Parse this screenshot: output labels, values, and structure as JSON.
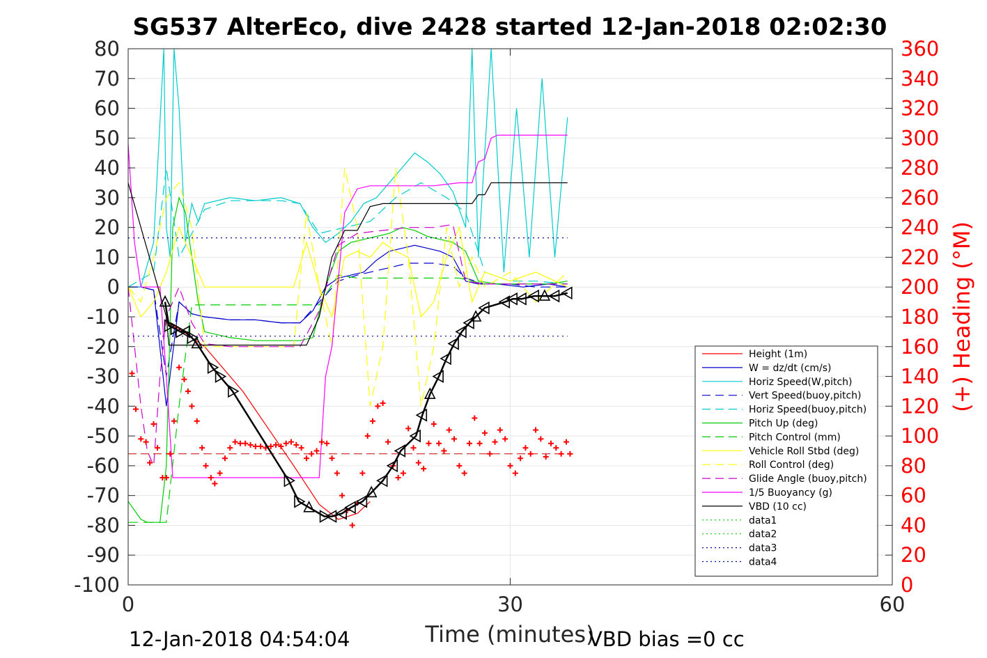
{
  "chart_data": {
    "type": "line",
    "title": "SG537 AlterEco, dive 2428 started 12-Jan-2018 02:02:30",
    "xlabel": "Time (minutes)",
    "ylabel_left": "",
    "ylabel_right": "(+) Heading (°M)",
    "xlim": [
      0,
      60
    ],
    "ylim_left": [
      -100,
      80
    ],
    "ylim_right": [
      0,
      360
    ],
    "x_ticks": [
      "0",
      "30",
      "60"
    ],
    "y_ticks_left": [
      "80",
      "70",
      "60",
      "50",
      "40",
      "30",
      "20",
      "10",
      "0",
      "-10",
      "-20",
      "-30",
      "-40",
      "-50",
      "-60",
      "-70",
      "-80",
      "-90",
      "-100"
    ],
    "y_ticks_right": [
      "360",
      "340",
      "320",
      "300",
      "280",
      "260",
      "240",
      "220",
      "200",
      "180",
      "160",
      "140",
      "120",
      "100",
      "80",
      "60",
      "40",
      "20",
      "0"
    ],
    "grid": true,
    "legend_position": "bottom-right",
    "footer_left": "12-Jan-2018 04:54:04",
    "footer_right": "VBD bias =0 cc",
    "series": [
      {
        "name": "Height (1m)",
        "color": "#ff0000",
        "style": "solid",
        "x": [
          3.0,
          4.0,
          6.0,
          9.0,
          13.0,
          15.0,
          16.5,
          18.0,
          19.0
        ],
        "y": [
          -12,
          -14,
          -20,
          -35,
          -60,
          -73,
          -78,
          -76,
          -72
        ]
      },
      {
        "name": "W = dz/dt (cm/s)",
        "color": "#0000cc",
        "style": "solid",
        "x": [
          0,
          1.0,
          2.0,
          3.0,
          4.0,
          5.0,
          6.0,
          8.0,
          10.0,
          12.0,
          13.5,
          14.5,
          15.5,
          16.5,
          17.5,
          18.5,
          19.5,
          20.5,
          21.5,
          22.5,
          23.5,
          24.5,
          25.5,
          26.5,
          27.5,
          29.0,
          31.0,
          33.0,
          34.5
        ],
        "y": [
          0,
          0,
          -1,
          -40,
          -5,
          -9,
          -10,
          -11,
          -11,
          -12,
          -12,
          -8,
          0,
          3,
          4,
          5,
          9,
          12,
          13,
          14,
          13,
          12,
          10,
          2,
          1,
          1,
          0,
          1,
          0
        ]
      },
      {
        "name": "Horiz Speed(W,pitch)",
        "color": "#00cccc",
        "style": "solid",
        "x": [
          0,
          1.0,
          2.0,
          2.8,
          3.0,
          3.3,
          3.6,
          4.0,
          4.5,
          5.0,
          5.5,
          6.0,
          8.0,
          10.0,
          12.0,
          13.5,
          14.5,
          15.5,
          16.5,
          17.5,
          18.5,
          19.5,
          20.5,
          21.5,
          22.5,
          23.5,
          24.5,
          25.5,
          26.5,
          27.0,
          27.5,
          28.5,
          29.5,
          30.5,
          31.5,
          32.5,
          33.5,
          34.5
        ],
        "y": [
          0,
          0,
          15,
          80,
          20,
          10,
          80,
          60,
          15,
          28,
          22,
          28,
          30,
          29,
          30,
          28,
          20,
          15,
          18,
          22,
          28,
          30,
          35,
          40,
          45,
          42,
          38,
          32,
          20,
          80,
          10,
          80,
          5,
          60,
          10,
          70,
          10,
          57
        ]
      },
      {
        "name": "Vert Speed(buoy,pitch)",
        "color": "#0000cc",
        "style": "dashed",
        "x": [
          0,
          1.0,
          2.0,
          3.0,
          4.0,
          5.0,
          6.0,
          8.0,
          10.0,
          12.0,
          13.5,
          15.0,
          16.5,
          18.0,
          20.0,
          22.0,
          24.0,
          25.5,
          26.5,
          28.0,
          30.0,
          32.0,
          34.5
        ],
        "y": [
          0,
          0,
          -1,
          -30,
          -5,
          -9,
          -10,
          -11,
          -11,
          -12,
          -12,
          -5,
          2,
          4,
          6,
          8,
          8,
          7,
          3,
          1,
          1,
          0,
          0
        ]
      },
      {
        "name": "Horiz Speed(buoy,pitch)",
        "color": "#00cccc",
        "style": "dashed",
        "x": [
          0,
          2.0,
          3.0,
          4.0,
          6.0,
          8.0,
          10.0,
          12.0,
          13.5,
          15.0,
          17.0,
          19.0,
          21.0,
          23.0,
          25.0,
          26.5,
          28.0,
          30.0,
          32.0,
          34.5
        ],
        "y": [
          0,
          5,
          40,
          10,
          26,
          29,
          29,
          29,
          28,
          18,
          20,
          22,
          30,
          35,
          30,
          25,
          5,
          2,
          2,
          1
        ]
      },
      {
        "name": "Pitch Up (deg)",
        "color": "#00cc00",
        "style": "solid",
        "x": [
          0,
          1.0,
          1.5,
          2.0,
          2.5,
          3.0,
          3.5,
          4.0,
          4.5,
          5.0,
          5.5,
          6.0,
          8.0,
          10.0,
          12.0,
          13.5,
          14.5,
          15.5,
          16.5,
          17.5,
          18.5,
          19.5,
          20.5,
          21.5,
          22.5,
          23.5,
          24.5,
          25.5,
          26.5,
          27.5,
          29.0,
          31.0,
          33.0,
          34.5
        ],
        "y": [
          -72,
          -78,
          -79,
          -79,
          -79,
          -60,
          20,
          30,
          25,
          10,
          -5,
          -15,
          -17,
          -18,
          -18,
          -18,
          -17,
          0,
          12,
          15,
          16,
          17,
          18,
          20,
          19,
          17,
          16,
          15,
          12,
          2,
          1,
          1,
          1,
          2
        ]
      },
      {
        "name": "Pitch Control (mm)",
        "color": "#00cc00",
        "style": "dashed",
        "x": [
          0,
          1.0,
          2.0,
          3.0,
          4.0,
          5.0,
          6.0,
          8.0,
          10.0,
          12.0,
          13.5,
          15.0,
          16.5,
          18.0,
          20.0,
          22.0,
          24.0,
          26.0,
          28.0,
          30.0,
          32.0,
          34.5
        ],
        "y": [
          -79,
          -79,
          -79,
          -79,
          -40,
          -6,
          -6,
          -6,
          -6,
          -6,
          -6,
          -6,
          4,
          3,
          3,
          3,
          3,
          3,
          1,
          1,
          1,
          1
        ]
      },
      {
        "name": "Vehicle Roll Stbd (deg)",
        "color": "#ffff00",
        "style": "solid",
        "x": [
          0,
          1.0,
          2.0,
          3.0,
          4.0,
          5.0,
          6.0,
          7.0,
          8.0,
          10.0,
          12.0,
          13.0,
          14.0,
          15.0,
          16.0,
          17.0,
          18.0,
          19.0,
          20.0,
          21.0,
          22.0,
          23.0,
          24.0,
          25.0,
          26.0,
          27.0,
          28.0,
          30.0,
          32.0,
          34.5
        ],
        "y": [
          0,
          -10,
          -5,
          5,
          20,
          10,
          0,
          0,
          0,
          0,
          0,
          0,
          15,
          0,
          -10,
          10,
          12,
          10,
          15,
          12,
          10,
          -10,
          -5,
          10,
          20,
          -5,
          5,
          2,
          5,
          0
        ]
      },
      {
        "name": "Roll Control (deg)",
        "color": "#ffff00",
        "style": "dashed",
        "x": [
          0,
          1.0,
          2.0,
          3.0,
          4.0,
          5.0,
          6.0,
          8.0,
          10.0,
          12.0,
          13.0,
          14.0,
          15.0,
          16.0,
          17.0,
          18.0,
          19.0,
          20.0,
          21.0,
          22.0,
          23.0,
          24.0,
          25.0,
          26.0,
          27.0,
          28.0,
          30.0,
          32.0,
          34.5
        ],
        "y": [
          0,
          -5,
          10,
          30,
          35,
          20,
          -20,
          -20,
          -20,
          -20,
          -20,
          25,
          0,
          -20,
          40,
          20,
          -40,
          -20,
          40,
          10,
          -40,
          -20,
          20,
          0,
          10,
          0,
          5,
          -5,
          5
        ]
      },
      {
        "name": "Glide Angle (buoy,pitch)",
        "color": "#cc00cc",
        "style": "dashed",
        "x": [
          0,
          1.0,
          1.5,
          2.0,
          2.5,
          3.0,
          3.5,
          4.0,
          5.0,
          6.0,
          8.0,
          10.0,
          12.0,
          13.5,
          15.0,
          16.5,
          18.0,
          20.0,
          22.0,
          24.0,
          25.5,
          26.5,
          28.0,
          30.0,
          32.0,
          34.5
        ],
        "y": [
          0,
          -40,
          -55,
          -60,
          -30,
          -10,
          -5,
          0,
          -12,
          -19,
          -20,
          -20,
          -20,
          -20,
          -8,
          14,
          18,
          19,
          20,
          20,
          21,
          2,
          1,
          1,
          1,
          1
        ]
      },
      {
        "name": "1/5 Buoyancy (g)",
        "color": "#ff00ff",
        "style": "solid",
        "x": [
          0,
          0.5,
          1.0,
          2.0,
          2.5,
          3.0,
          3.5,
          5.0,
          8.0,
          10.0,
          12.0,
          14.0,
          15.0,
          15.5,
          16.0,
          17.0,
          18.0,
          19.0,
          20.0,
          22.0,
          24.0,
          26.0,
          27.0,
          27.5,
          28.0,
          28.5,
          29.0,
          31.0,
          33.0,
          34.5
        ],
        "y": [
          48,
          15,
          0,
          0,
          0,
          -30,
          -64,
          -64,
          -64,
          -64,
          -64,
          -64,
          -64,
          -30,
          -20,
          25,
          33,
          34,
          34,
          34,
          34,
          35,
          35,
          42,
          43,
          50,
          51,
          51,
          51,
          51
        ]
      },
      {
        "name": "VBD (10 cc)",
        "color": "#000000",
        "style": "solid",
        "x": [
          0,
          1.0,
          2.0,
          3.0,
          3.2,
          8.0,
          12.0,
          14.0,
          15.0,
          16.0,
          17.0,
          18.0,
          19.0,
          20.0,
          22.0,
          24.0,
          26.0,
          27.0,
          27.5,
          28.0,
          28.5,
          29.0,
          31.0,
          33.0,
          34.5
        ],
        "y": [
          35,
          20,
          5,
          -10,
          -19.5,
          -19.5,
          -19.5,
          -19.5,
          -10,
          10,
          19,
          19,
          27,
          28,
          28,
          28,
          28,
          28,
          31,
          31,
          35,
          35,
          35,
          35,
          35
        ]
      },
      {
        "name": "data1",
        "color": "#00cc00",
        "style": "dotted",
        "x": [],
        "y": []
      },
      {
        "name": "data2",
        "color": "#00cc00",
        "style": "dotted",
        "x": [],
        "y": []
      },
      {
        "name": "data3",
        "color": "#000099",
        "style": "dotted",
        "x": [
          0,
          34.5
        ],
        "y": [
          16.5,
          16.5
        ]
      },
      {
        "name": "data4",
        "color": "#000099",
        "style": "dotted",
        "x": [
          0,
          34.5
        ],
        "y": [
          -16.5,
          -16.5
        ]
      }
    ],
    "overlay": {
      "height_ref_dashed": {
        "color": "#cc0000",
        "x": [
          0,
          34.5
        ],
        "y": [
          -56,
          -56
        ]
      },
      "depth_markers": {
        "color": "#000000",
        "x": [
          2.9,
          3.2,
          3.7,
          4.1,
          4.5,
          5.0,
          5.4,
          6.6,
          7.2,
          8.2,
          12.6,
          13.4,
          14.2,
          15.4,
          16.0,
          16.8,
          17.5,
          18.4,
          19.1,
          20.0,
          20.8,
          21.4,
          22.6,
          23.1,
          23.7,
          24.4,
          25.0,
          25.6,
          26.2,
          26.8,
          27.3,
          28.0,
          29.6,
          30.2,
          30.9,
          31.9,
          32.7,
          33.5,
          34.5
        ],
        "y": [
          -5,
          -13,
          -14,
          -15,
          -15,
          -17,
          -19,
          -27,
          -30,
          -35,
          -65,
          -72,
          -74,
          -77,
          -77,
          -76,
          -74,
          -72,
          -69,
          -65,
          -60,
          -55,
          -50,
          -43,
          -36,
          -30,
          -24,
          -19,
          -15,
          -12,
          -10,
          -7,
          -5,
          -4,
          -4,
          -3,
          -3,
          -3,
          -2
        ]
      },
      "heading_points": {
        "color": "#ff0000",
        "x": [
          0.3,
          0.6,
          1.0,
          1.4,
          1.7,
          2.0,
          2.3,
          2.7,
          3.0,
          3.3,
          3.6,
          4.0,
          4.4,
          4.7,
          5.0,
          5.4,
          5.8,
          6.1,
          6.5,
          6.8,
          7.2,
          7.6,
          8.0,
          8.4,
          8.8,
          9.2,
          9.6,
          10.0,
          10.4,
          10.8,
          11.2,
          11.6,
          12.0,
          12.4,
          12.8,
          13.2,
          13.6,
          14.0,
          14.4,
          14.8,
          15.2,
          15.6,
          16.0,
          16.4,
          16.8,
          17.2,
          17.6,
          18.0,
          18.4,
          18.8,
          19.2,
          19.6,
          20.0,
          20.4,
          20.8,
          21.2,
          21.6,
          22.0,
          22.4,
          22.8,
          23.2,
          23.6,
          24.0,
          24.4,
          24.8,
          25.2,
          25.6,
          26.0,
          26.4,
          26.8,
          27.2,
          27.6,
          28.0,
          28.4,
          28.8,
          29.2,
          29.6,
          30.0,
          30.4,
          30.8,
          31.2,
          31.6,
          32.0,
          32.4,
          32.8,
          33.2,
          33.6,
          34.0,
          34.4,
          34.7
        ],
        "y": [
          142,
          118,
          98,
          96,
          82,
          108,
          92,
          72,
          72,
          88,
          110,
          146,
          138,
          130,
          120,
          110,
          92,
          80,
          72,
          68,
          75,
          85,
          92,
          96,
          95,
          95,
          94,
          93,
          93,
          92,
          93,
          94,
          93,
          95,
          96,
          94,
          92,
          85,
          88,
          90,
          96,
          95,
          85,
          75,
          60,
          50,
          40,
          55,
          75,
          100,
          110,
          120,
          122,
          96,
          80,
          72,
          75,
          105,
          92,
          82,
          78,
          95,
          108,
          95,
          90,
          104,
          98,
          80,
          75,
          95,
          112,
          95,
          102,
          88,
          96,
          104,
          98,
          80,
          75,
          85,
          92,
          88,
          104,
          98,
          86,
          95,
          92,
          88,
          96,
          88
        ]
      }
    }
  }
}
